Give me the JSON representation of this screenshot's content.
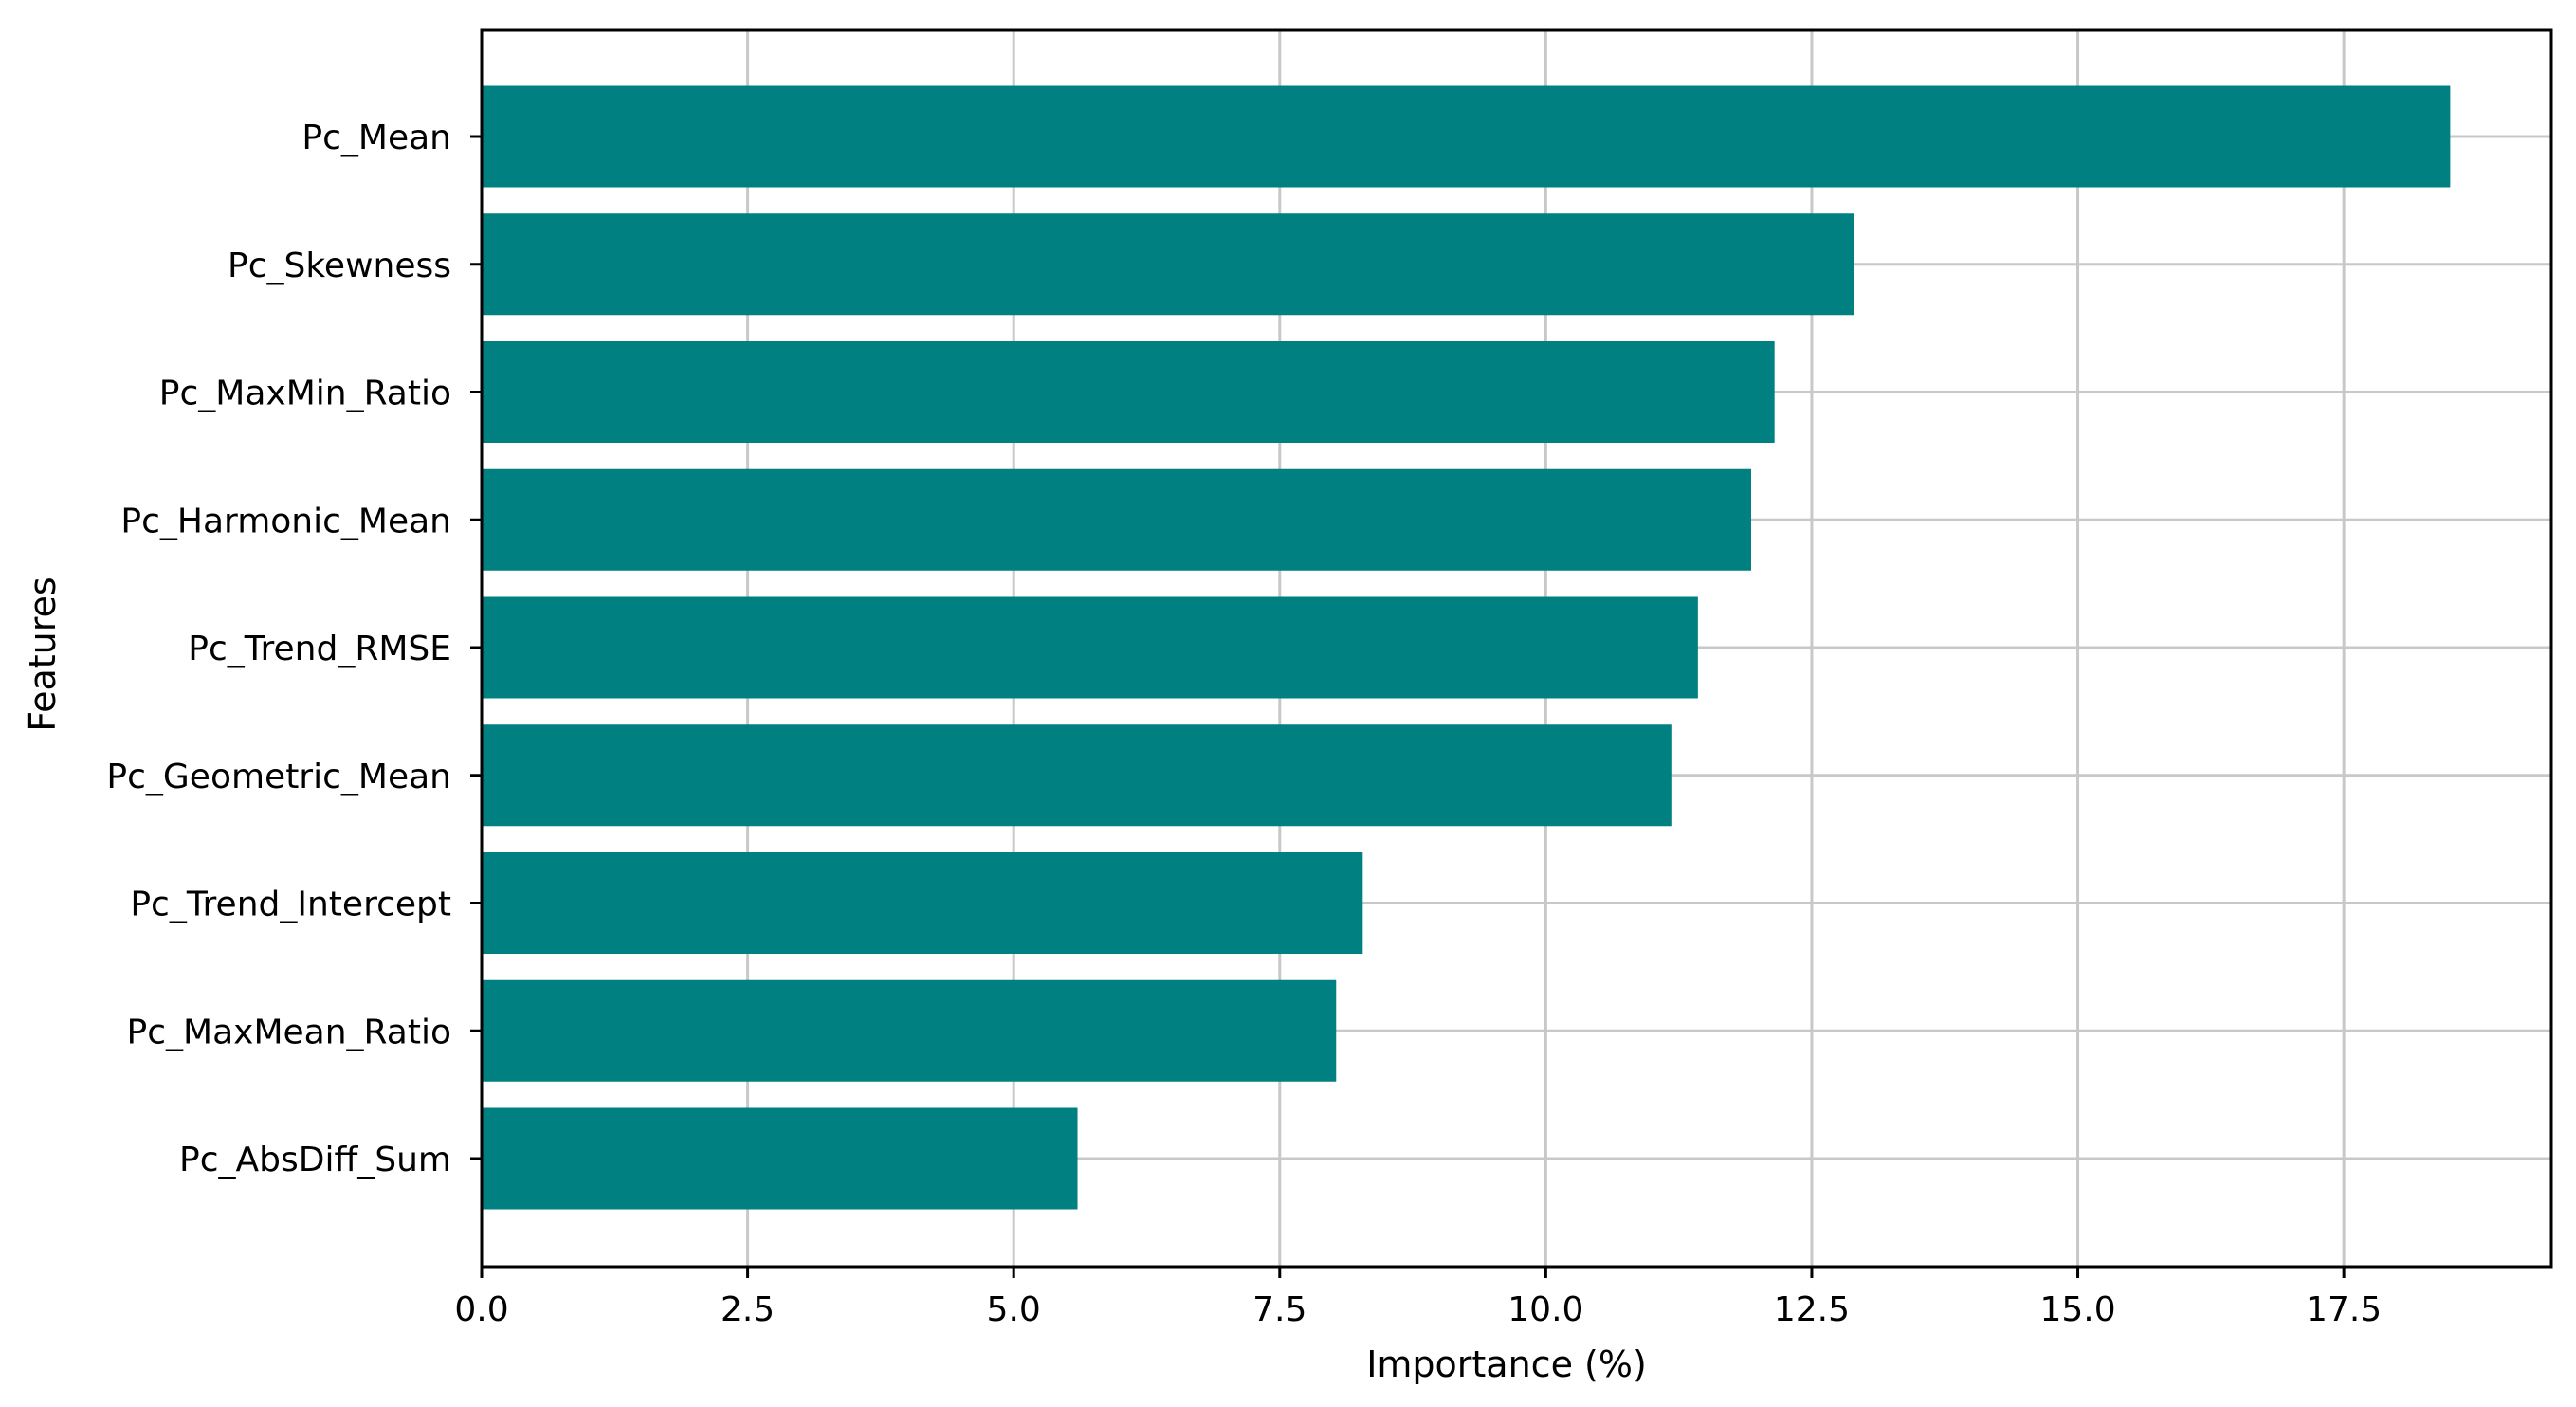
{
  "chart_data": {
    "type": "bar",
    "orientation": "horizontal",
    "categories": [
      "Pc_Mean",
      "Pc_Skewness",
      "Pc_MaxMin_Ratio",
      "Pc_Harmonic_Mean",
      "Pc_Trend_RMSE",
      "Pc_Geometric_Mean",
      "Pc_Trend_Intercept",
      "Pc_MaxMean_Ratio",
      "Pc_AbsDiff_Sum"
    ],
    "values": [
      18.5,
      12.9,
      12.15,
      11.93,
      11.43,
      11.18,
      8.28,
      8.03,
      5.6
    ],
    "xlabel": "Importance (%)",
    "ylabel": "Features",
    "xlim": [
      0,
      19.45
    ],
    "xticks": [
      0.0,
      2.5,
      5.0,
      7.5,
      10.0,
      12.5,
      15.0,
      17.5
    ],
    "xtick_labels": [
      "0.0",
      "2.5",
      "5.0",
      "7.5",
      "10.0",
      "12.5",
      "15.0",
      "17.5"
    ],
    "grid": true,
    "bar_color": "#008080",
    "grid_color": "#c8c8c8"
  }
}
